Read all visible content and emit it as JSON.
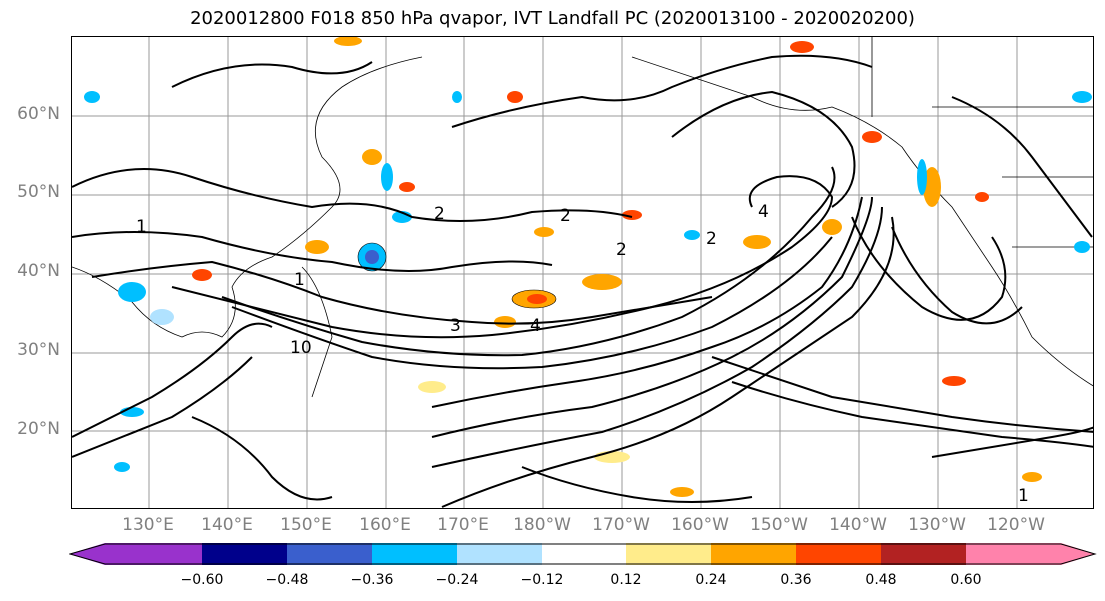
{
  "title": "2020012800 F018 850 hPa qvapor, IVT Landfall PC (2020013100 - 2020020200)",
  "map": {
    "lat_labels": [
      "60°N",
      "50°N",
      "40°N",
      "30°N",
      "20°N"
    ],
    "lon_labels": [
      "130°E",
      "140°E",
      "150°E",
      "160°E",
      "170°E",
      "180°W",
      "170°W",
      "160°W",
      "150°W",
      "140°W",
      "130°W",
      "120°W"
    ],
    "contour_labels": [
      "1",
      "2",
      "2",
      "2",
      "2",
      "3",
      "4",
      "4",
      "1",
      "10",
      "1"
    ],
    "line_color": "#000000",
    "gridline_color": "#999999"
  },
  "colorbar": {
    "ticks": [
      "−0.60",
      "−0.48",
      "−0.36",
      "−0.24",
      "−0.12",
      "0.12",
      "0.24",
      "0.36",
      "0.48",
      "0.60"
    ],
    "colors": [
      "#9932cc",
      "#00008b",
      "#3a5fcd",
      "#00bfff",
      "#b0e2ff",
      "#ffffff",
      "#ffec8b",
      "#ffa500",
      "#ff4500",
      "#b22222",
      "#ff82ab"
    ]
  }
}
